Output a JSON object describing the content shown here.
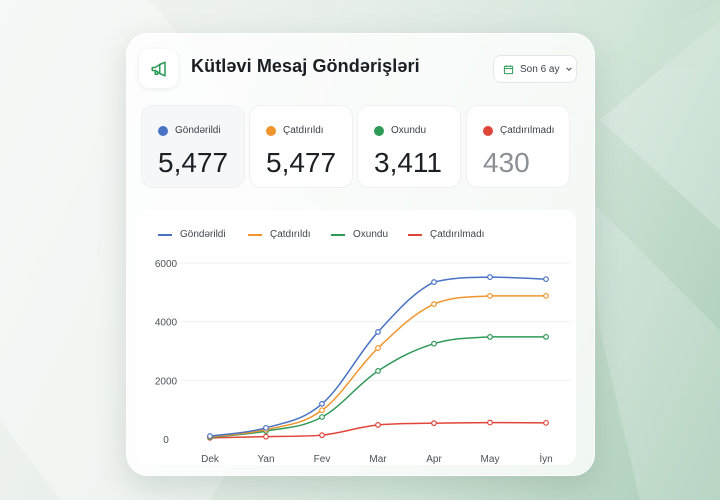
{
  "header": {
    "title": "Kütləvi Mesaj Göndərişləri",
    "icon": "megaphone-icon",
    "period_label": "Son 6 ay",
    "period_icon": "calendar-icon",
    "dropdown_icon": "chevron-down-icon"
  },
  "stats": [
    {
      "label": "Göndərildi",
      "value": "5,477",
      "color": "#4a72c4"
    },
    {
      "label": "Çatdırıldı",
      "value": "5,477",
      "color": "#f0952e"
    },
    {
      "label": "Oxundu",
      "value": "3,411",
      "color": "#2f9a58"
    },
    {
      "label": "Çatdırılmadı",
      "value": "430",
      "color": "#e0453a"
    }
  ],
  "legend": [
    "Göndərildi",
    "Çatdırıldı",
    "Oxundu",
    "Çatdırılmadı"
  ],
  "colors": {
    "accent": "#2f9a58",
    "sent": "#4a72c4",
    "delivered": "#f0952e",
    "read": "#2f9a58",
    "failed": "#e0453a"
  },
  "chart_data": {
    "type": "line",
    "categories": [
      "Dek",
      "Yan",
      "Fev",
      "Mar",
      "Apr",
      "May",
      "İyn"
    ],
    "yticks": [
      "0",
      "2000",
      "4000",
      "6000"
    ],
    "ylim": [
      0,
      6000
    ],
    "grid": true,
    "legend_position": "top-left",
    "series": [
      {
        "name": "Göndərildi",
        "color": "#4a72c4",
        "values": [
          100,
          380,
          1200,
          3650,
          5350,
          5520,
          5450
        ]
      },
      {
        "name": "Çatdırıldı",
        "color": "#f0952e",
        "values": [
          80,
          320,
          980,
          3100,
          4600,
          4880,
          4880
        ]
      },
      {
        "name": "Oxundu",
        "color": "#2f9a58",
        "values": [
          60,
          270,
          750,
          2320,
          3250,
          3480,
          3480
        ]
      },
      {
        "name": "Çatdırılmadı",
        "color": "#e0453a",
        "values": [
          40,
          80,
          130,
          480,
          540,
          560,
          550
        ]
      }
    ]
  }
}
